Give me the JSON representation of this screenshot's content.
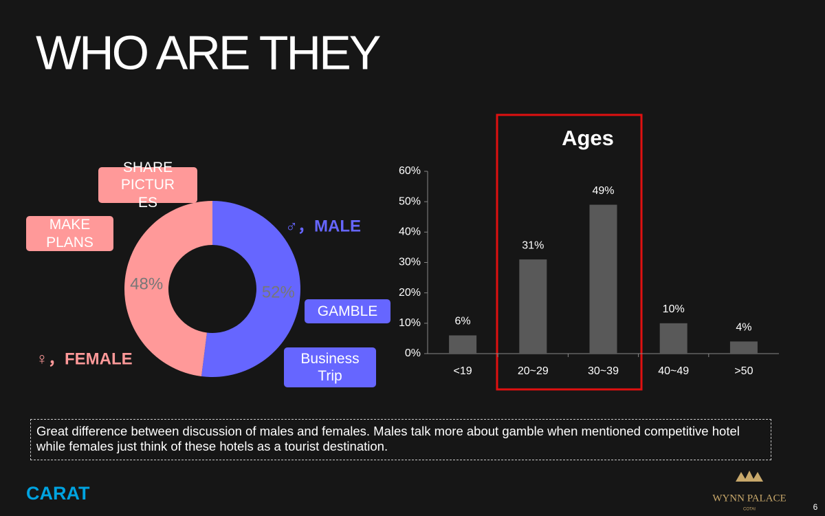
{
  "title": "WHO ARE THEY",
  "chart_data": [
    {
      "type": "donut",
      "categories": [
        "♀，FEMALE",
        "♂，MALE"
      ],
      "values": [
        48,
        52
      ],
      "value_labels": [
        "48%",
        "52%"
      ],
      "colors": [
        "#ff9999",
        "#6666ff"
      ]
    },
    {
      "type": "bar",
      "title": "Ages",
      "categories": [
        "<19",
        "20~29",
        "30~39",
        "40~49",
        ">50"
      ],
      "values": [
        6,
        31,
        49,
        10,
        4
      ],
      "value_labels": [
        "6%",
        "31%",
        "49%",
        "10%",
        "4%"
      ],
      "color": "#595959",
      "ylim": [
        0,
        60
      ],
      "yticks": [
        {
          "value": 0,
          "label": "0%"
        },
        {
          "value": 10,
          "label": "10%"
        },
        {
          "value": 20,
          "label": "20%"
        },
        {
          "value": 30,
          "label": "30%"
        },
        {
          "value": 40,
          "label": "40%"
        },
        {
          "value": 50,
          "label": "50%"
        },
        {
          "value": 60,
          "label": "60%"
        }
      ]
    }
  ],
  "callouts": {
    "share": "SHARE PICTURES",
    "plans": "MAKE PLANS",
    "gamble": "GAMBLE",
    "business": "Business Trip"
  },
  "note": "Great difference between discussion of males and females. Males talk more about gamble when mentioned competitive hotel while females just think of these hotels as a tourist destination.",
  "logos": {
    "carat": "CARAT",
    "wynn": "WYNN PALACE",
    "cotai": "COTAI"
  },
  "page_number": "6"
}
